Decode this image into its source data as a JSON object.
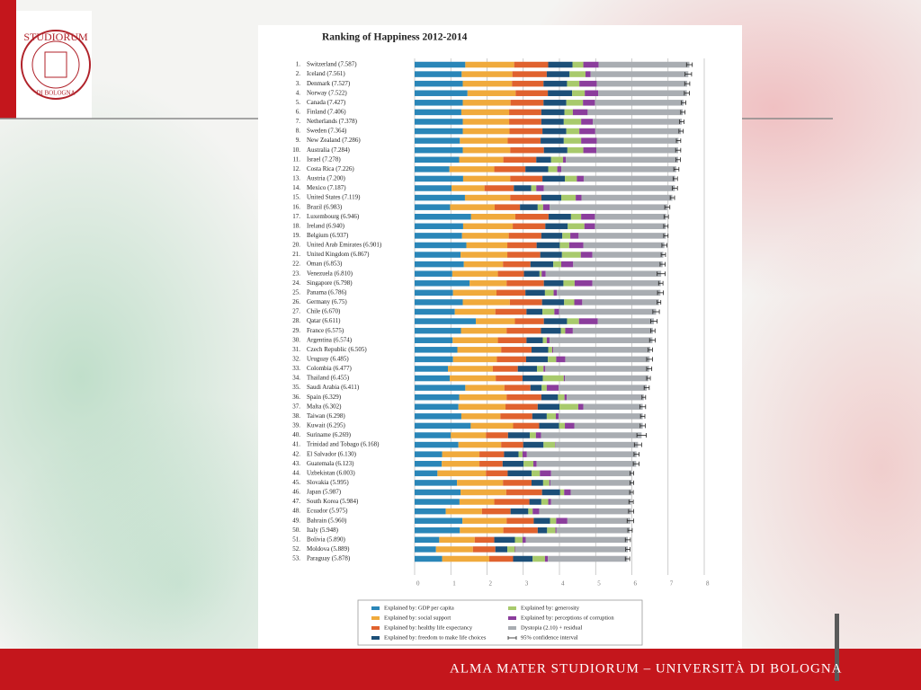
{
  "logo": {
    "text": "STUDIORUM",
    "subtext": "DI BOLOGNA"
  },
  "footer": "ALMA MATER STUDIORUM – UNIVERSITÀ DI BOLOGNA",
  "chart_data": {
    "type": "stacked-bar-horizontal",
    "title": "Ranking of Happiness 2012-2014",
    "ranks": [
      "1.",
      "2.",
      "3.",
      "4.",
      "5.",
      "6.",
      "7.",
      "8.",
      "9.",
      "10.",
      "11.",
      "12.",
      "13.",
      "14.",
      "15.",
      "16.",
      "17.",
      "18.",
      "19.",
      "20.",
      "21.",
      "22.",
      "23.",
      "24.",
      "25.",
      "26.",
      "27.",
      "28.",
      "29.",
      "30.",
      "31.",
      "32.",
      "33.",
      "34.",
      "35.",
      "36.",
      "37.",
      "38.",
      "39.",
      "40.",
      "41.",
      "42.",
      "43.",
      "44.",
      "45.",
      "46.",
      "47.",
      "48.",
      "49.",
      "50.",
      "51.",
      "52.",
      "53."
    ],
    "categories": [
      "Switzerland (7.587)",
      "Iceland (7.561)",
      "Denmark (7.527)",
      "Norway (7.522)",
      "Canada (7.427)",
      "Finland (7.406)",
      "Netherlands (7.378)",
      "Sweden (7.364)",
      "New Zealand (7.286)",
      "Australia (7.284)",
      "Israel (7.278)",
      "Costa Rica (7.226)",
      "Austria (7.200)",
      "Mexico (7.187)",
      "United States (7.119)",
      "Brazil (6.983)",
      "Luxembourg (6.946)",
      "Ireland (6.940)",
      "Belgium (6.937)",
      "United Arab Emirates (6.901)",
      "United Kingdom (6.867)",
      "Oman (6.853)",
      "Venezuela (6.810)",
      "Singapore (6.798)",
      "Panama (6.786)",
      "Germany (6.75)",
      "Chile (6.670)",
      "Qatar (6.611)",
      "France (6.575)",
      "Argentina (6.574)",
      "Czech Republic (6.505)",
      "Uruguay (6.485)",
      "Colombia (6.477)",
      "Thailand (6.455)",
      "Saudi Arabia (6.411)",
      "Spain (6.329)",
      "Malta (6.302)",
      "Taiwan (6.298)",
      "Kuwait (6.295)",
      "Suriname (6.269)",
      "Trinidad and Tobago (6.168)",
      "El Salvador (6.130)",
      "Guatemala (6.123)",
      "Uzbekistan (6.003)",
      "Slovakia (5.995)",
      "Japan (5.987)",
      "South Korea (5.984)",
      "Ecuador (5.975)",
      "Bahrain (5.960)",
      "Italy (5.948)",
      "Bolivia (5.890)",
      "Moldova (5.889)",
      "Paraguay (5.878)"
    ],
    "series": [
      {
        "name": "Explained by: GDP per capita",
        "color": "#2a86b8",
        "values": [
          1.4,
          1.3,
          1.33,
          1.46,
          1.33,
          1.29,
          1.33,
          1.33,
          1.25,
          1.33,
          1.23,
          0.96,
          1.34,
          1.02,
          1.39,
          0.98,
          1.56,
          1.34,
          1.31,
          1.43,
          1.27,
          1.36,
          1.04,
          1.52,
          1.06,
          1.33,
          1.11,
          1.69,
          1.28,
          1.05,
          1.18,
          1.06,
          0.92,
          0.97,
          1.4,
          1.23,
          1.21,
          1.29,
          1.55,
          1.0,
          1.21,
          0.76,
          0.75,
          0.63,
          1.17,
          1.27,
          1.24,
          0.86,
          1.32,
          1.25,
          0.68,
          0.59,
          0.76
        ]
      },
      {
        "name": "Explained by: social support",
        "color": "#f0aa3c",
        "values": [
          1.35,
          1.4,
          1.36,
          1.33,
          1.32,
          1.32,
          1.28,
          1.29,
          1.32,
          1.31,
          1.22,
          1.24,
          1.3,
          0.91,
          1.25,
          1.23,
          1.22,
          1.37,
          1.29,
          1.13,
          1.29,
          1.08,
          1.26,
          1.02,
          1.2,
          1.3,
          1.12,
          1.08,
          1.26,
          1.25,
          1.21,
          1.21,
          1.24,
          1.27,
          1.08,
          1.31,
          1.3,
          1.08,
          1.17,
          0.97,
          1.18,
          1.03,
          1.04,
          1.34,
          1.27,
          1.26,
          0.96,
          1.0,
          1.22,
          1.2,
          0.98,
          1.02,
          1.3
        ]
      },
      {
        "name": "Explained by: healthy life expectancy",
        "color": "#e0622e",
        "values": [
          0.94,
          0.95,
          0.87,
          0.89,
          0.91,
          0.89,
          0.89,
          0.91,
          0.91,
          0.93,
          0.91,
          0.86,
          0.89,
          0.81,
          0.86,
          0.7,
          0.92,
          0.9,
          0.9,
          0.81,
          0.91,
          0.76,
          0.72,
          1.03,
          0.8,
          0.89,
          0.86,
          0.8,
          0.95,
          0.79,
          0.84,
          0.81,
          0.69,
          0.74,
          0.72,
          0.96,
          0.89,
          0.88,
          0.72,
          0.61,
          0.61,
          0.68,
          0.64,
          0.6,
          0.79,
          0.99,
          0.97,
          0.79,
          0.75,
          0.95,
          0.54,
          0.62,
          0.66
        ]
      },
      {
        "name": "Explained by: freedom to make life choices",
        "color": "#1c4f78",
        "values": [
          0.67,
          0.63,
          0.65,
          0.67,
          0.63,
          0.64,
          0.62,
          0.66,
          0.64,
          0.65,
          0.41,
          0.63,
          0.62,
          0.48,
          0.55,
          0.49,
          0.62,
          0.62,
          0.58,
          0.64,
          0.6,
          0.63,
          0.43,
          0.54,
          0.54,
          0.61,
          0.44,
          0.64,
          0.55,
          0.45,
          0.46,
          0.6,
          0.53,
          0.56,
          0.31,
          0.46,
          0.6,
          0.4,
          0.55,
          0.6,
          0.56,
          0.4,
          0.58,
          0.66,
          0.32,
          0.5,
          0.33,
          0.49,
          0.45,
          0.26,
          0.57,
          0.33,
          0.54
        ]
      },
      {
        "name": "Explained by: generosity",
        "color": "#a8ca6c",
        "values": [
          0.3,
          0.44,
          0.34,
          0.35,
          0.46,
          0.23,
          0.48,
          0.36,
          0.48,
          0.44,
          0.33,
          0.25,
          0.33,
          0.14,
          0.4,
          0.15,
          0.28,
          0.46,
          0.22,
          0.26,
          0.52,
          0.22,
          0.06,
          0.31,
          0.24,
          0.28,
          0.33,
          0.33,
          0.12,
          0.11,
          0.11,
          0.23,
          0.18,
          0.58,
          0.14,
          0.18,
          0.52,
          0.25,
          0.16,
          0.17,
          0.32,
          0.11,
          0.27,
          0.23,
          0.17,
          0.11,
          0.19,
          0.12,
          0.17,
          0.23,
          0.21,
          0.21,
          0.34
        ]
      },
      {
        "name": "Explained by: perceptions of corruption",
        "color": "#8b3d9c",
        "values": [
          0.42,
          0.14,
          0.48,
          0.37,
          0.33,
          0.41,
          0.32,
          0.44,
          0.43,
          0.36,
          0.08,
          0.11,
          0.19,
          0.21,
          0.16,
          0.18,
          0.38,
          0.29,
          0.23,
          0.39,
          0.32,
          0.33,
          0.11,
          0.49,
          0.09,
          0.22,
          0.13,
          0.52,
          0.21,
          0.08,
          0.03,
          0.25,
          0.05,
          0.03,
          0.33,
          0.06,
          0.14,
          0.08,
          0.26,
          0.14,
          0.01,
          0.12,
          0.09,
          0.31,
          0.03,
          0.18,
          0.08,
          0.18,
          0.31,
          0.03,
          0.09,
          0.02,
          0.08
        ]
      },
      {
        "name": "Dystopia (2.10) + residual",
        "color": "#a9adb2",
        "values": [
          2.51,
          2.7,
          2.5,
          2.45,
          2.45,
          2.63,
          2.46,
          2.37,
          2.26,
          2.26,
          3.1,
          3.18,
          2.53,
          3.62,
          2.51,
          3.25,
          1.97,
          1.96,
          2.41,
          2.24,
          1.96,
          2.47,
          3.19,
          1.89,
          2.86,
          2.12,
          2.68,
          1.55,
          2.21,
          2.84,
          2.68,
          2.33,
          2.87,
          2.31,
          2.43,
          2.13,
          1.64,
          2.32,
          1.89,
          2.78,
          2.28,
          3.03,
          2.75,
          2.23,
          2.25,
          1.68,
          2.21,
          2.54,
          1.74,
          2.03,
          2.82,
          3.1,
          2.2
        ]
      }
    ],
    "error_name": "95% confidence interval",
    "errors": [
      0.08,
      0.09,
      0.07,
      0.07,
      0.06,
      0.06,
      0.06,
      0.06,
      0.06,
      0.07,
      0.06,
      0.07,
      0.06,
      0.07,
      0.06,
      0.07,
      0.06,
      0.06,
      0.06,
      0.07,
      0.06,
      0.07,
      0.11,
      0.06,
      0.08,
      0.05,
      0.09,
      0.09,
      0.06,
      0.08,
      0.06,
      0.08,
      0.07,
      0.05,
      0.07,
      0.05,
      0.08,
      0.06,
      0.07,
      0.13,
      0.1,
      0.07,
      0.08,
      0.05,
      0.05,
      0.05,
      0.06,
      0.07,
      0.09,
      0.06,
      0.07,
      0.06,
      0.06
    ],
    "xlim": [
      0,
      8
    ],
    "xticks": [
      0,
      1,
      2,
      3,
      4,
      5,
      6,
      7,
      8
    ],
    "grid": true
  }
}
